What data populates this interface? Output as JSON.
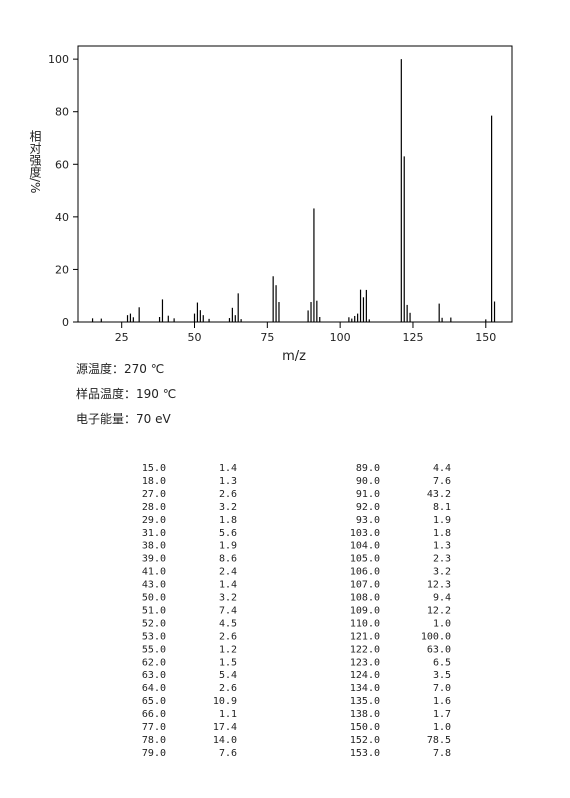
{
  "chart_data": {
    "type": "stick",
    "y_label": "相对强度/%",
    "x_label": "m/z",
    "xlim": [
      10,
      159
    ],
    "xticks": [
      25,
      50,
      75,
      100,
      125,
      150
    ],
    "ylim": [
      0,
      105
    ],
    "yticks": [
      0,
      20,
      40,
      60,
      80,
      100
    ],
    "color": "#000000",
    "x": [
      15,
      18,
      27,
      28,
      29,
      31,
      38,
      39,
      41,
      43,
      50,
      51,
      52,
      53,
      55,
      62,
      63,
      64,
      65,
      66,
      77,
      78,
      79,
      89,
      90,
      91,
      92,
      93,
      103,
      104,
      105,
      106,
      107,
      108,
      109,
      110,
      121,
      122,
      123,
      124,
      134,
      135,
      138,
      150,
      152,
      153
    ],
    "values": [
      1.4,
      1.3,
      2.6,
      3.2,
      1.8,
      5.6,
      1.9,
      8.6,
      2.4,
      1.4,
      3.2,
      7.4,
      4.5,
      2.6,
      1.2,
      1.5,
      5.4,
      2.6,
      10.9,
      1.1,
      17.4,
      14.0,
      7.6,
      4.4,
      7.6,
      43.2,
      8.1,
      1.9,
      1.8,
      1.3,
      2.3,
      3.2,
      12.3,
      9.4,
      12.2,
      1.0,
      100.0,
      63.0,
      6.5,
      3.5,
      7.0,
      1.6,
      1.7,
      1.0,
      78.5,
      7.8
    ]
  },
  "conditions": [
    "源温度：270 ℃",
    "样品温度：190 ℃",
    "电子能量：70 eV"
  ],
  "table": {
    "left": [
      [
        "15.0",
        "1.4"
      ],
      [
        "18.0",
        "1.3"
      ],
      [
        "27.0",
        "2.6"
      ],
      [
        "28.0",
        "3.2"
      ],
      [
        "29.0",
        "1.8"
      ],
      [
        "31.0",
        "5.6"
      ],
      [
        "38.0",
        "1.9"
      ],
      [
        "39.0",
        "8.6"
      ],
      [
        "41.0",
        "2.4"
      ],
      [
        "43.0",
        "1.4"
      ],
      [
        "50.0",
        "3.2"
      ],
      [
        "51.0",
        "7.4"
      ],
      [
        "52.0",
        "4.5"
      ],
      [
        "53.0",
        "2.6"
      ],
      [
        "55.0",
        "1.2"
      ],
      [
        "62.0",
        "1.5"
      ],
      [
        "63.0",
        "5.4"
      ],
      [
        "64.0",
        "2.6"
      ],
      [
        "65.0",
        "10.9"
      ],
      [
        "66.0",
        "1.1"
      ],
      [
        "77.0",
        "17.4"
      ],
      [
        "78.0",
        "14.0"
      ],
      [
        "79.0",
        "7.6"
      ]
    ],
    "right": [
      [
        "89.0",
        "4.4"
      ],
      [
        "90.0",
        "7.6"
      ],
      [
        "91.0",
        "43.2"
      ],
      [
        "92.0",
        "8.1"
      ],
      [
        "93.0",
        "1.9"
      ],
      [
        "103.0",
        "1.8"
      ],
      [
        "104.0",
        "1.3"
      ],
      [
        "105.0",
        "2.3"
      ],
      [
        "106.0",
        "3.2"
      ],
      [
        "107.0",
        "12.3"
      ],
      [
        "108.0",
        "9.4"
      ],
      [
        "109.0",
        "12.2"
      ],
      [
        "110.0",
        "1.0"
      ],
      [
        "121.0",
        "100.0"
      ],
      [
        "122.0",
        "63.0"
      ],
      [
        "123.0",
        "6.5"
      ],
      [
        "124.0",
        "3.5"
      ],
      [
        "134.0",
        "7.0"
      ],
      [
        "135.0",
        "1.6"
      ],
      [
        "138.0",
        "1.7"
      ],
      [
        "150.0",
        "1.0"
      ],
      [
        "152.0",
        "78.5"
      ],
      [
        "153.0",
        "7.8"
      ]
    ]
  }
}
